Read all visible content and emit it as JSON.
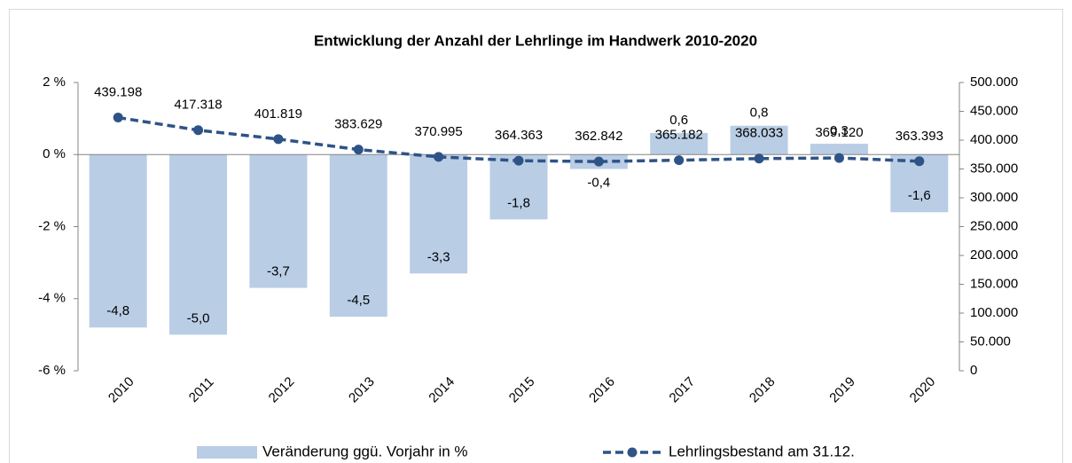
{
  "chart_data": {
    "type": "bar",
    "title": "Entwicklung der Anzahl der Lehrlinge im Handwerk 2010-2020",
    "categories": [
      "2010",
      "2011",
      "2012",
      "2013",
      "2014",
      "2015",
      "2016",
      "2017",
      "2018",
      "2019",
      "2020"
    ],
    "series": [
      {
        "name": "Veränderung ggü. Vorjahr in %",
        "type": "bar",
        "color": "#b9cde5",
        "values": [
          -4.8,
          -5.0,
          -3.7,
          -4.5,
          -3.3,
          -1.8,
          -0.4,
          0.6,
          0.8,
          0.3,
          -1.6
        ],
        "value_labels": [
          "-4,8",
          "-5,0",
          "-3,7",
          "-4,5",
          "-3,3",
          "-1,8",
          "-0,4",
          "0,6",
          "0,8",
          "0,3",
          "-1,6"
        ]
      },
      {
        "name": "Lehrlingsbestand am 31.12.",
        "type": "line",
        "axis": "y2",
        "color": "#2e5387",
        "values": [
          439198,
          417318,
          401819,
          383629,
          370995,
          364363,
          362842,
          365182,
          368033,
          369120,
          363393
        ],
        "value_labels": [
          "439.198",
          "417.318",
          "401.819",
          "383.629",
          "370.995",
          "364.363",
          "362.842",
          "365.182",
          "368.033",
          "369.120",
          "363.393"
        ]
      }
    ],
    "ylim": [
      -6,
      2
    ],
    "yticks": [
      {
        "value": -6,
        "label": "-6 %"
      },
      {
        "value": -4,
        "label": "-4 %"
      },
      {
        "value": -2,
        "label": "-2 %"
      },
      {
        "value": 0,
        "label": "0 %"
      },
      {
        "value": 2,
        "label": "2 %"
      }
    ],
    "y2lim": [
      0,
      500000
    ],
    "y2ticks": [
      0,
      {
        "value": 50000,
        "label": "50.000"
      },
      {
        "value": 100000,
        "label": "100.000"
      },
      {
        "value": 150000,
        "label": "150.000"
      },
      {
        "value": 200000,
        "label": "200.000"
      },
      {
        "value": 250000,
        "label": "250.000"
      },
      {
        "value": 300000,
        "label": "300.000"
      },
      {
        "value": 350000,
        "label": "350.000"
      },
      {
        "value": 400000,
        "label": "400.000"
      },
      {
        "value": 450000,
        "label": "450.000"
      },
      {
        "value": 500000,
        "label": "500.000"
      }
    ],
    "legend": "bottom"
  }
}
